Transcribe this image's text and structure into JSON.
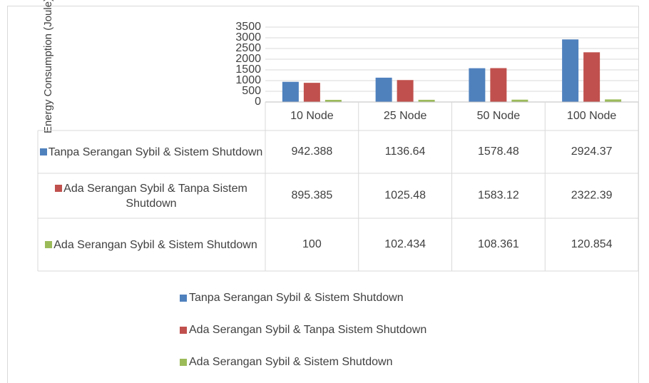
{
  "chart_data": {
    "type": "bar",
    "y_axis_label": "Energy Consumption (Joule)",
    "categories": [
      "10 Node",
      "25 Node",
      "50 Node",
      "100 Node"
    ],
    "series": [
      {
        "name": "Tanpa Serangan Sybil & Sistem Shutdown",
        "color": "#4f81bd",
        "values": [
          942.388,
          1136.64,
          1578.48,
          2924.37
        ]
      },
      {
        "name": "Ada Serangan Sybil & Tanpa Sistem Shutdown",
        "color": "#c0504d",
        "values": [
          895.385,
          1025.48,
          1583.12,
          2322.39
        ]
      },
      {
        "name": "Ada Serangan Sybil & Sistem Shutdown",
        "color": "#9bbb59",
        "values": [
          100,
          102.434,
          108.361,
          120.854
        ]
      }
    ],
    "ylim": [
      0,
      3500
    ],
    "yticks": [
      0,
      500,
      1000,
      1500,
      2000,
      2500,
      3000,
      3500
    ],
    "grid": true,
    "legend": "bottom",
    "data_table": true
  }
}
